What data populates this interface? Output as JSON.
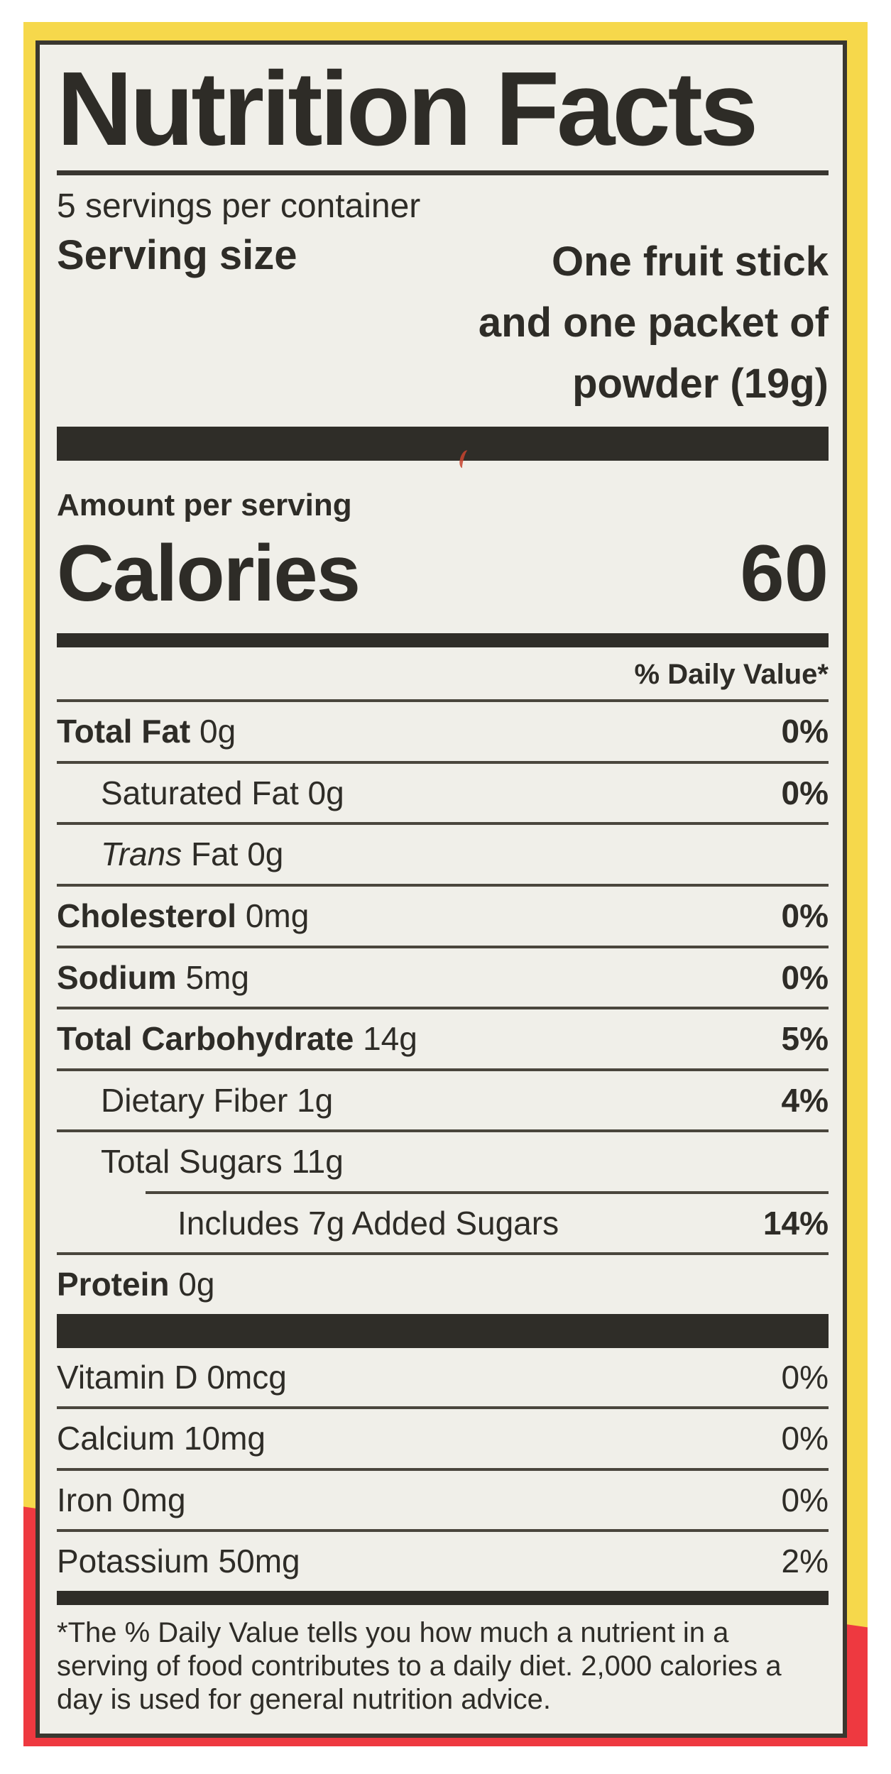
{
  "colors": {
    "packaging_yellow": "#f6d84b",
    "packaging_red": "#ee3940",
    "label_background": "#f0efe9",
    "ink": "#2e2c27"
  },
  "label": {
    "title": "Nutrition Facts",
    "servings_per_container": "5 servings per container",
    "serving_size_label": "Serving size",
    "serving_size_lines": {
      "0": "One fruit stick",
      "1": "and one packet of",
      "2": "powder (19g)"
    },
    "amount_per_serving": "Amount per serving",
    "calories_label": "Calories",
    "calories_value": "60",
    "daily_value_header": "% Daily Value*",
    "nutrients": {
      "0": {
        "bold": "Total Fat",
        "rest": "0g",
        "dv": "0%"
      },
      "1": {
        "plain": "Saturated Fat 0g",
        "dv": "0%"
      },
      "2": {
        "italic": "Trans",
        "plain": "Fat 0g",
        "dv": ""
      },
      "3": {
        "bold": "Cholesterol",
        "rest": "0mg",
        "dv": "0%"
      },
      "4": {
        "bold": "Sodium",
        "rest": "5mg",
        "dv": "0%"
      },
      "5": {
        "bold": "Total Carbohydrate",
        "rest": "14g",
        "dv": "5%"
      },
      "6": {
        "plain": "Dietary Fiber 1g",
        "dv": "4%"
      },
      "7": {
        "plain": "Total Sugars 11g",
        "dv": ""
      },
      "8": {
        "plain": "Includes 7g Added Sugars",
        "dv": "14%"
      },
      "9": {
        "bold": "Protein",
        "rest": "0g",
        "dv": ""
      }
    },
    "micronutrients": {
      "0": {
        "plain": "Vitamin D 0mcg",
        "dv": "0%"
      },
      "1": {
        "plain": "Calcium 10mg",
        "dv": "0%"
      },
      "2": {
        "plain": "Iron 0mg",
        "dv": "0%"
      },
      "3": {
        "plain": "Potassium 50mg",
        "dv": "2%"
      }
    },
    "footnote_lines": {
      "0": "*The % Daily Value tells you how much a nutrient in a",
      "1": "serving of food contributes to a daily diet. 2,000 calories a",
      "2": "day is used for general nutrition advice."
    }
  }
}
